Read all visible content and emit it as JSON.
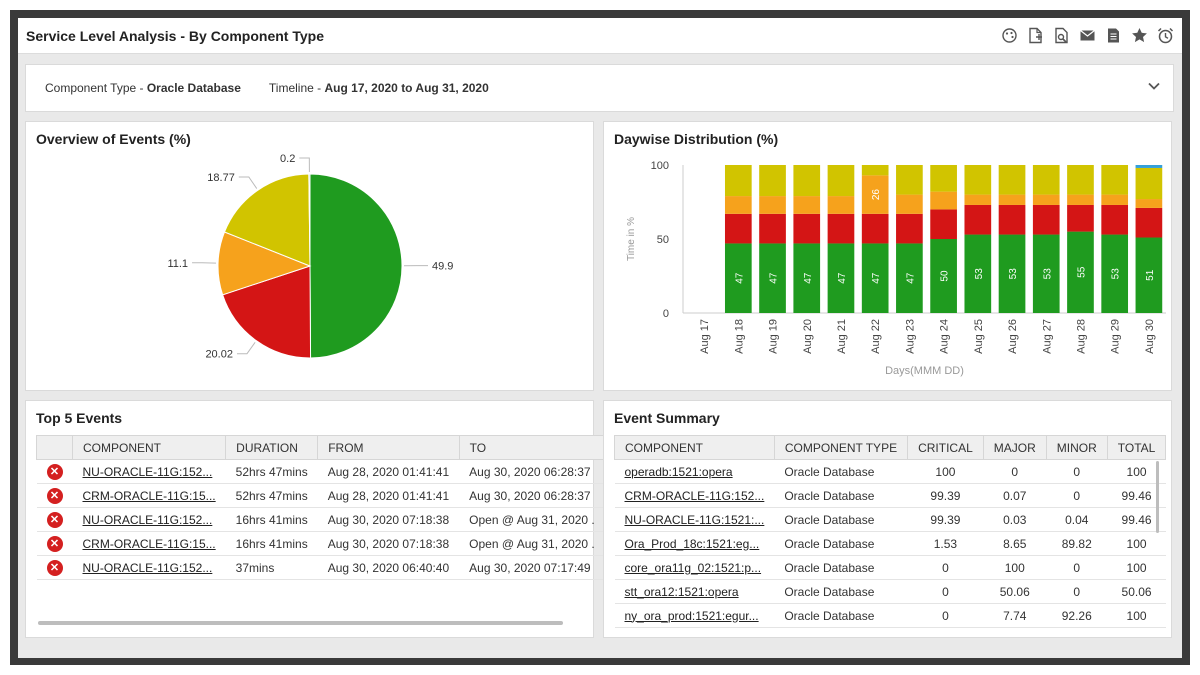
{
  "page_title": "Service Level Analysis - By Component Type",
  "toolbar_icons": [
    "palette-icon",
    "pdf-export-icon",
    "search-file-icon",
    "email-icon",
    "document-icon",
    "star-icon",
    "alarm-clock-icon"
  ],
  "filters": {
    "component_label": "Component Type - ",
    "component_value": "Oracle Database",
    "timeline_label": "Timeline - ",
    "timeline_value": "Aug 17, 2020 to Aug 31, 2020"
  },
  "overview": {
    "title": "Overview of Events (%)",
    "chart_data": {
      "type": "pie",
      "slices": [
        {
          "value": 49.9,
          "label": "49.9",
          "color": "#1f9b1f"
        },
        {
          "value": 20.02,
          "label": "20.02",
          "color": "#d41515"
        },
        {
          "value": 11.1,
          "label": "11.1",
          "color": "#f6a21c"
        },
        {
          "value": 18.77,
          "label": "18.77",
          "color": "#d1c400"
        },
        {
          "value": 0.2,
          "label": "0.2",
          "color": "#35a0d9"
        }
      ]
    }
  },
  "daywise": {
    "title": "Daywise Distribution (%)",
    "chart_data": {
      "type": "bar",
      "stacked": true,
      "xlabel": "Days(MMM DD)",
      "ylabel": "Time in %",
      "ylim": [
        0,
        100
      ],
      "yticks": [
        "0",
        "50",
        "100"
      ],
      "categories": [
        "Aug 17",
        "Aug 18",
        "Aug 19",
        "Aug 20",
        "Aug 21",
        "Aug 22",
        "Aug 23",
        "Aug 24",
        "Aug 25",
        "Aug 26",
        "Aug 27",
        "Aug 28",
        "Aug 29",
        "Aug 30"
      ],
      "series": [
        {
          "color": "#1f9b1f",
          "values": [
            0,
            47,
            47,
            47,
            47,
            47,
            47,
            50,
            53,
            53,
            53,
            55,
            53,
            51
          ],
          "labels": [
            "",
            "47",
            "47",
            "47",
            "47",
            "47",
            "47",
            "50",
            "53",
            "53",
            "53",
            "55",
            "53",
            "51"
          ]
        },
        {
          "color": "#d41515",
          "values": [
            0,
            20,
            20,
            20,
            20,
            20,
            20,
            20,
            20,
            20,
            20,
            18,
            20,
            20
          ],
          "labels": []
        },
        {
          "color": "#f6a21c",
          "values": [
            0,
            12,
            12,
            12,
            12,
            26,
            13,
            12,
            7,
            7,
            7,
            7,
            7,
            6
          ],
          "labels": [
            "",
            "",
            "",
            "",
            "",
            "26",
            "",
            "",
            "",
            "",
            "",
            "",
            "",
            ""
          ]
        },
        {
          "color": "#d1c400",
          "values": [
            0,
            21,
            21,
            21,
            21,
            7,
            20,
            18,
            20,
            20,
            20,
            20,
            20,
            21
          ],
          "labels": []
        },
        {
          "color": "#35a0d9",
          "values": [
            0,
            0,
            0,
            0,
            0,
            0,
            0,
            0,
            0,
            0,
            0,
            0,
            0,
            2
          ],
          "labels": []
        }
      ]
    }
  },
  "top5": {
    "title": "Top 5 Events",
    "columns": [
      "",
      "COMPONENT",
      "DURATION",
      "FROM",
      "TO"
    ],
    "rows": [
      {
        "component": "NU-ORACLE-11G:152...",
        "duration": "52hrs 47mins",
        "from": "Aug 28, 2020 01:41:41",
        "to": "Aug 30, 2020 06:28:37"
      },
      {
        "component": "CRM-ORACLE-11G:15...",
        "duration": "52hrs 47mins",
        "from": "Aug 28, 2020 01:41:41",
        "to": "Aug 30, 2020 06:28:37"
      },
      {
        "component": "NU-ORACLE-11G:152...",
        "duration": "16hrs 41mins",
        "from": "Aug 30, 2020 07:18:38",
        "to": "Open @ Aug 31, 2020 ."
      },
      {
        "component": "CRM-ORACLE-11G:15...",
        "duration": "16hrs 41mins",
        "from": "Aug 30, 2020 07:18:38",
        "to": "Open @ Aug 31, 2020 ."
      },
      {
        "component": "NU-ORACLE-11G:152...",
        "duration": "37mins",
        "from": "Aug 30, 2020 06:40:40",
        "to": "Aug 30, 2020 07:17:49"
      }
    ]
  },
  "summary": {
    "title": "Event Summary",
    "columns": [
      "COMPONENT",
      "COMPONENT TYPE",
      "CRITICAL",
      "MAJOR",
      "MINOR",
      "TOTAL"
    ],
    "rows": [
      {
        "component": "operadb:1521:opera",
        "type": "Oracle Database",
        "critical": "100",
        "major": "0",
        "minor": "0",
        "total": "100"
      },
      {
        "component": "CRM-ORACLE-11G:152...",
        "type": "Oracle Database",
        "critical": "99.39",
        "major": "0.07",
        "minor": "0",
        "total": "99.46"
      },
      {
        "component": "NU-ORACLE-11G:1521:...",
        "type": "Oracle Database",
        "critical": "99.39",
        "major": "0.03",
        "minor": "0.04",
        "total": "99.46"
      },
      {
        "component": "Ora_Prod_18c:1521:eg...",
        "type": "Oracle Database",
        "critical": "1.53",
        "major": "8.65",
        "minor": "89.82",
        "total": "100"
      },
      {
        "component": "core_ora11g_02:1521:p...",
        "type": "Oracle Database",
        "critical": "0",
        "major": "100",
        "minor": "0",
        "total": "100"
      },
      {
        "component": "stt_ora12:1521:opera",
        "type": "Oracle Database",
        "critical": "0",
        "major": "50.06",
        "minor": "0",
        "total": "50.06"
      },
      {
        "component": "ny_ora_prod:1521:egur...",
        "type": "Oracle Database",
        "critical": "0",
        "major": "7.74",
        "minor": "92.26",
        "total": "100"
      }
    ]
  }
}
